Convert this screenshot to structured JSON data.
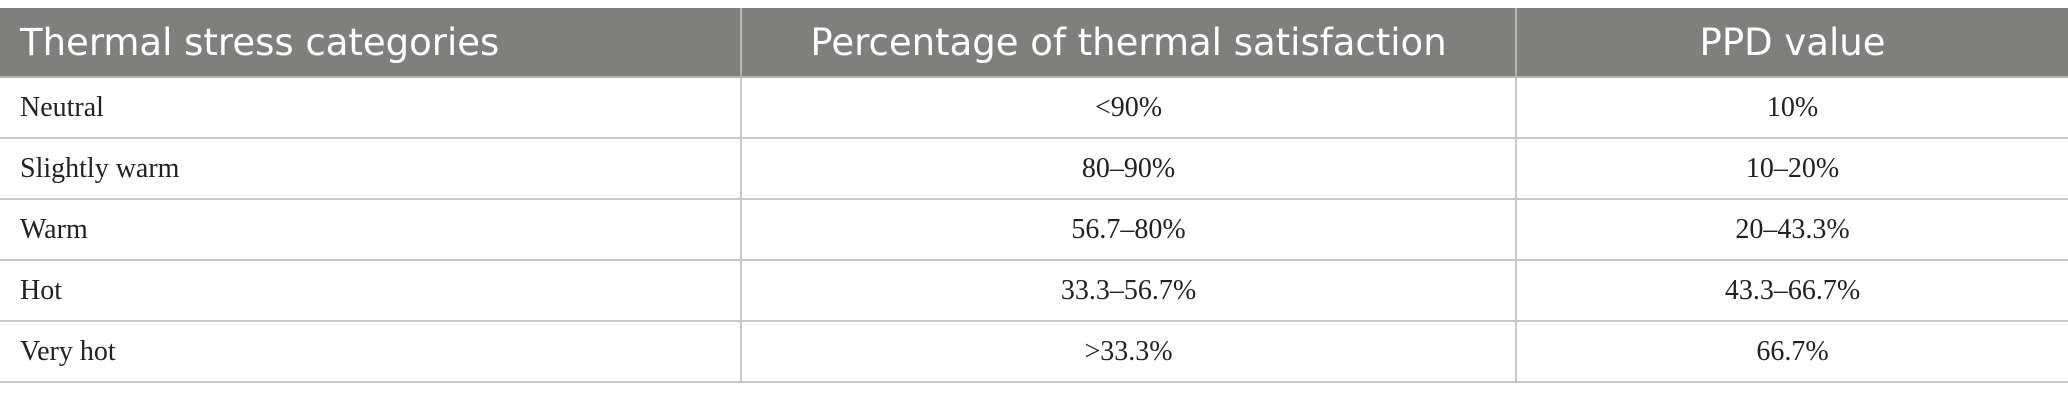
{
  "table": {
    "headers": [
      "Thermal stress categories",
      "Percentage of thermal satisfaction",
      "PPD value"
    ],
    "rows": [
      [
        "Neutral",
        "<90%",
        "10%"
      ],
      [
        "Slightly warm",
        "80–90%",
        "10–20%"
      ],
      [
        "Warm",
        "56.7–80%",
        "20–43.3%"
      ],
      [
        "Hot",
        "33.3–56.7%",
        "43.3–66.7%"
      ],
      [
        "Very hot",
        ">33.3%",
        "66.7%"
      ]
    ]
  },
  "colors": {
    "header_background": "#7f7f7d",
    "header_text": "#ffffff",
    "body_text": "#222222",
    "grid_lines": "#c8c8c8"
  }
}
